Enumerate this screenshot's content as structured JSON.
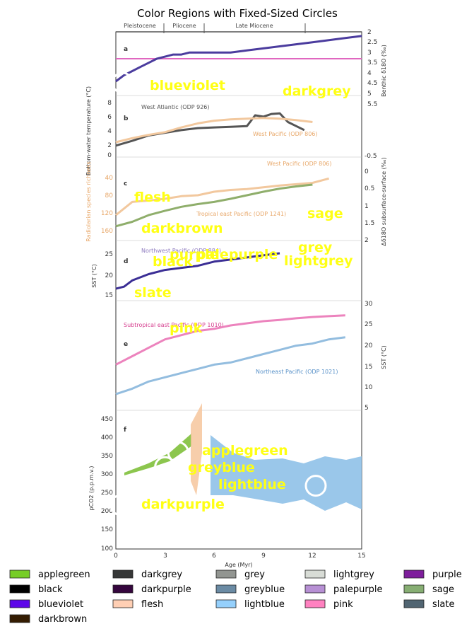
{
  "title": "Color Regions with Fixed-Sized Circles",
  "epochs": [
    "Pleistocene",
    "Pliocene",
    "Late Miocene"
  ],
  "xaxis": {
    "label": "Age (Myr)",
    "ticks": [
      "0",
      "3",
      "6",
      "9",
      "12",
      "15"
    ]
  },
  "panels": {
    "a": {
      "letter": "a",
      "right_label": "Benthic δ18O (‰)",
      "right_ticks": [
        "2",
        "2.5",
        "3",
        "3.5",
        "4",
        "4.5",
        "5",
        "5.5"
      ]
    },
    "b": {
      "letter": "b",
      "left_label": "Bottom-water temperature (°C)",
      "left_ticks": [
        "8",
        "6",
        "4",
        "2",
        "0"
      ],
      "annotations": [
        "West Atlantic (ODP 926)",
        "West Pacific (ODP 806)"
      ]
    },
    "c": {
      "letter": "c",
      "left_label": "Radiolarian species richness",
      "left_ticks": [
        "40",
        "80",
        "120",
        "160"
      ],
      "right_label": "Δδ18O subsurface-surface (‰)",
      "right_ticks": [
        "-0.5",
        "0",
        "0.5",
        "1",
        "1.5",
        "2"
      ],
      "annotations": [
        "West Pacific (ODP 806)",
        "Tropical east Pacific (ODP 1241)"
      ]
    },
    "d": {
      "letter": "d",
      "left_label": "SST (°C)",
      "left_ticks": [
        "25",
        "20",
        "15"
      ],
      "annotations": [
        "Northwest Pacific (ODP 884)"
      ]
    },
    "e": {
      "letter": "e",
      "right_label": "SST (°C)",
      "right_ticks": [
        "30",
        "25",
        "20",
        "15",
        "10",
        "5"
      ],
      "annotations": [
        "Subtropical east Pacific (ODP 1010)",
        "Northeast Pacific (ODP 1021)"
      ]
    },
    "f": {
      "letter": "f",
      "left_label": "pCO2 (p.p.m.v.)",
      "left_ticks": [
        "450",
        "400",
        "350",
        "300",
        "250",
        "200",
        "150",
        "100"
      ]
    }
  },
  "overlay_labels": [
    {
      "name": "blueviolet",
      "color": "#ffff14"
    },
    {
      "name": "darkgrey",
      "color": "#ffff14"
    },
    {
      "name": "flesh",
      "color": "#ffff14"
    },
    {
      "name": "sage",
      "color": "#ffff14"
    },
    {
      "name": "darkbrown",
      "color": "#ffff14"
    },
    {
      "name": "purple",
      "color": "#ffff14"
    },
    {
      "name": "palepurple",
      "color": "#ffff14"
    },
    {
      "name": "grey",
      "color": "#ffff14"
    },
    {
      "name": "black",
      "color": "#ffff14"
    },
    {
      "name": "lightgrey",
      "color": "#ffff14"
    },
    {
      "name": "slate",
      "color": "#ffff14"
    },
    {
      "name": "pink",
      "color": "#ffff14"
    },
    {
      "name": "applegreen",
      "color": "#ffff14"
    },
    {
      "name": "greyblue",
      "color": "#ffff14"
    },
    {
      "name": "lightblue",
      "color": "#ffff14"
    },
    {
      "name": "darkpurple",
      "color": "#ffff14"
    }
  ],
  "chart_data": {
    "type": "line",
    "title": "Color Regions with Fixed-Sized Circles",
    "xlabel": "Age (Myr)",
    "xlim": [
      0,
      15
    ],
    "legend_position": "bottom",
    "legend": [
      {
        "name": "applegreen",
        "color": "#76cd26"
      },
      {
        "name": "darkgrey",
        "color": "#363737"
      },
      {
        "name": "grey",
        "color": "#929591"
      },
      {
        "name": "lightgrey",
        "color": "#d8dcd6"
      },
      {
        "name": "purple",
        "color": "#7e1e9c"
      },
      {
        "name": "black",
        "color": "#000000"
      },
      {
        "name": "darkpurple",
        "color": "#35063e"
      },
      {
        "name": "greyblue",
        "color": "#6b8ba4"
      },
      {
        "name": "palepurple",
        "color": "#b790d4"
      },
      {
        "name": "sage",
        "color": "#87ae73"
      },
      {
        "name": "blueviolet",
        "color": "#5d06e9"
      },
      {
        "name": "flesh",
        "color": "#ffcfb4"
      },
      {
        "name": "lightblue",
        "color": "#95d0fc"
      },
      {
        "name": "pink",
        "color": "#ff81c0"
      },
      {
        "name": "slate",
        "color": "#516572"
      },
      {
        "name": "darkbrown",
        "color": "#341c02"
      }
    ],
    "markers": [
      {
        "label": "blueviolet",
        "x": 0.4,
        "panel": "a"
      },
      {
        "label": "applegreen",
        "x": 3.8,
        "y": 360,
        "panel": "f"
      },
      {
        "label": "greyblue",
        "x": 3.0,
        "y": 320,
        "panel": "f"
      },
      {
        "label": "lightblue",
        "x": 12.2,
        "y": 270,
        "panel": "f"
      },
      {
        "label": "darkpurple",
        "x": 0.3,
        "y": 218,
        "panel": "f"
      }
    ],
    "series": [
      {
        "panel": "a",
        "name": "Benthic δ18O",
        "color": "#4b3c9e",
        "x": [
          0,
          0.5,
          1,
          1.5,
          2,
          2.5,
          3,
          3.5,
          4,
          4.5,
          5,
          6,
          7,
          8,
          9,
          10,
          11,
          12,
          13,
          14,
          15
        ],
        "y": [
          4.3,
          4.0,
          3.8,
          3.6,
          3.4,
          3.2,
          3.1,
          3.0,
          3.0,
          2.9,
          2.9,
          2.9,
          2.9,
          2.8,
          2.7,
          2.6,
          2.5,
          2.4,
          2.3,
          2.2,
          2.1
        ]
      },
      {
        "panel": "b",
        "name": "West Atlantic (ODP 926)",
        "color": "#555555",
        "x": [
          0,
          1,
          2,
          3,
          4,
          5,
          6,
          7,
          8,
          8.5,
          9,
          9.5,
          10,
          10.5,
          11,
          11.5
        ],
        "y": [
          1.5,
          2.2,
          3.0,
          3.4,
          3.8,
          4.1,
          4.2,
          4.3,
          4.4,
          6.0,
          5.8,
          6.2,
          6.3,
          5.0,
          4.4,
          3.8
        ]
      },
      {
        "panel": "b",
        "name": "West Pacific (ODP 806)",
        "color": "#f2c89e",
        "x": [
          0,
          1,
          2,
          3,
          4,
          5,
          6,
          7,
          8,
          9,
          10,
          11,
          12
        ],
        "y": [
          2.0,
          2.6,
          3.1,
          3.5,
          4.2,
          4.8,
          5.2,
          5.4,
          5.5,
          5.6,
          5.5,
          5.3,
          5.0
        ]
      },
      {
        "panel": "c",
        "name": "West Pacific (ODP 806)",
        "color": "#f2c89e",
        "x": [
          0,
          1,
          2,
          3,
          4,
          5,
          6,
          7,
          8,
          9,
          10,
          11,
          12,
          13
        ],
        "y": [
          125,
          95,
          92,
          88,
          82,
          80,
          72,
          68,
          66,
          62,
          58,
          55,
          52,
          42
        ]
      },
      {
        "panel": "c",
        "name": "Tropical east Pacific (ODP 1241)",
        "color": "#8fae6b",
        "x": [
          0,
          1,
          2,
          3,
          4,
          5,
          6,
          7,
          8,
          9,
          10,
          11,
          12
        ],
        "y": [
          150,
          140,
          125,
          115,
          106,
          100,
          95,
          88,
          80,
          72,
          65,
          60,
          56
        ]
      },
      {
        "panel": "d",
        "name": "Northwest Pacific (ODP 884)",
        "color": "#3b2e95",
        "x": [
          0,
          0.5,
          1,
          2,
          3,
          4,
          5,
          6,
          7,
          8,
          9,
          10
        ],
        "y": [
          16.5,
          17.0,
          18.5,
          20.0,
          21.0,
          21.5,
          22.0,
          23.0,
          23.5,
          24.0,
          24.5,
          25.0
        ]
      },
      {
        "panel": "e",
        "name": "Subtropical east Pacific (ODP 1010)",
        "color": "#ec83bd",
        "x": [
          0,
          1,
          2,
          3,
          4,
          5,
          6,
          7,
          8,
          9,
          10,
          11,
          12,
          13,
          14
        ],
        "y": [
          15.5,
          17.5,
          19.5,
          21.5,
          22.5,
          23.5,
          24.0,
          24.8,
          25.3,
          25.8,
          26.1,
          26.5,
          26.8,
          27.0,
          27.2
        ]
      },
      {
        "panel": "e",
        "name": "Northeast Pacific (ODP 1021)",
        "color": "#93bddf",
        "x": [
          0,
          1,
          2,
          3,
          4,
          5,
          6,
          7,
          8,
          9,
          10,
          11,
          12,
          13,
          14
        ],
        "y": [
          8.5,
          9.8,
          11.5,
          12.5,
          13.5,
          14.5,
          15.5,
          16.0,
          17.0,
          18.0,
          19.0,
          20.0,
          20.5,
          21.5,
          22.0
        ]
      },
      {
        "panel": "f",
        "name": "pCO2 (lightblue band)",
        "color": "#8fc1e8",
        "x": [
          5.8,
          7,
          8,
          9,
          10,
          11,
          12,
          13,
          14,
          15
        ],
        "y": [
          280,
          280,
          275,
          290,
          280,
          275,
          270,
          280,
          275,
          280
        ]
      },
      {
        "panel": "f",
        "name": "pCO2 (applegreen band)",
        "color": "#8cc64e",
        "x": [
          0.5,
          1,
          2,
          3,
          4,
          5
        ],
        "y": [
          300,
          310,
          330,
          345,
          365,
          410
        ]
      }
    ]
  }
}
